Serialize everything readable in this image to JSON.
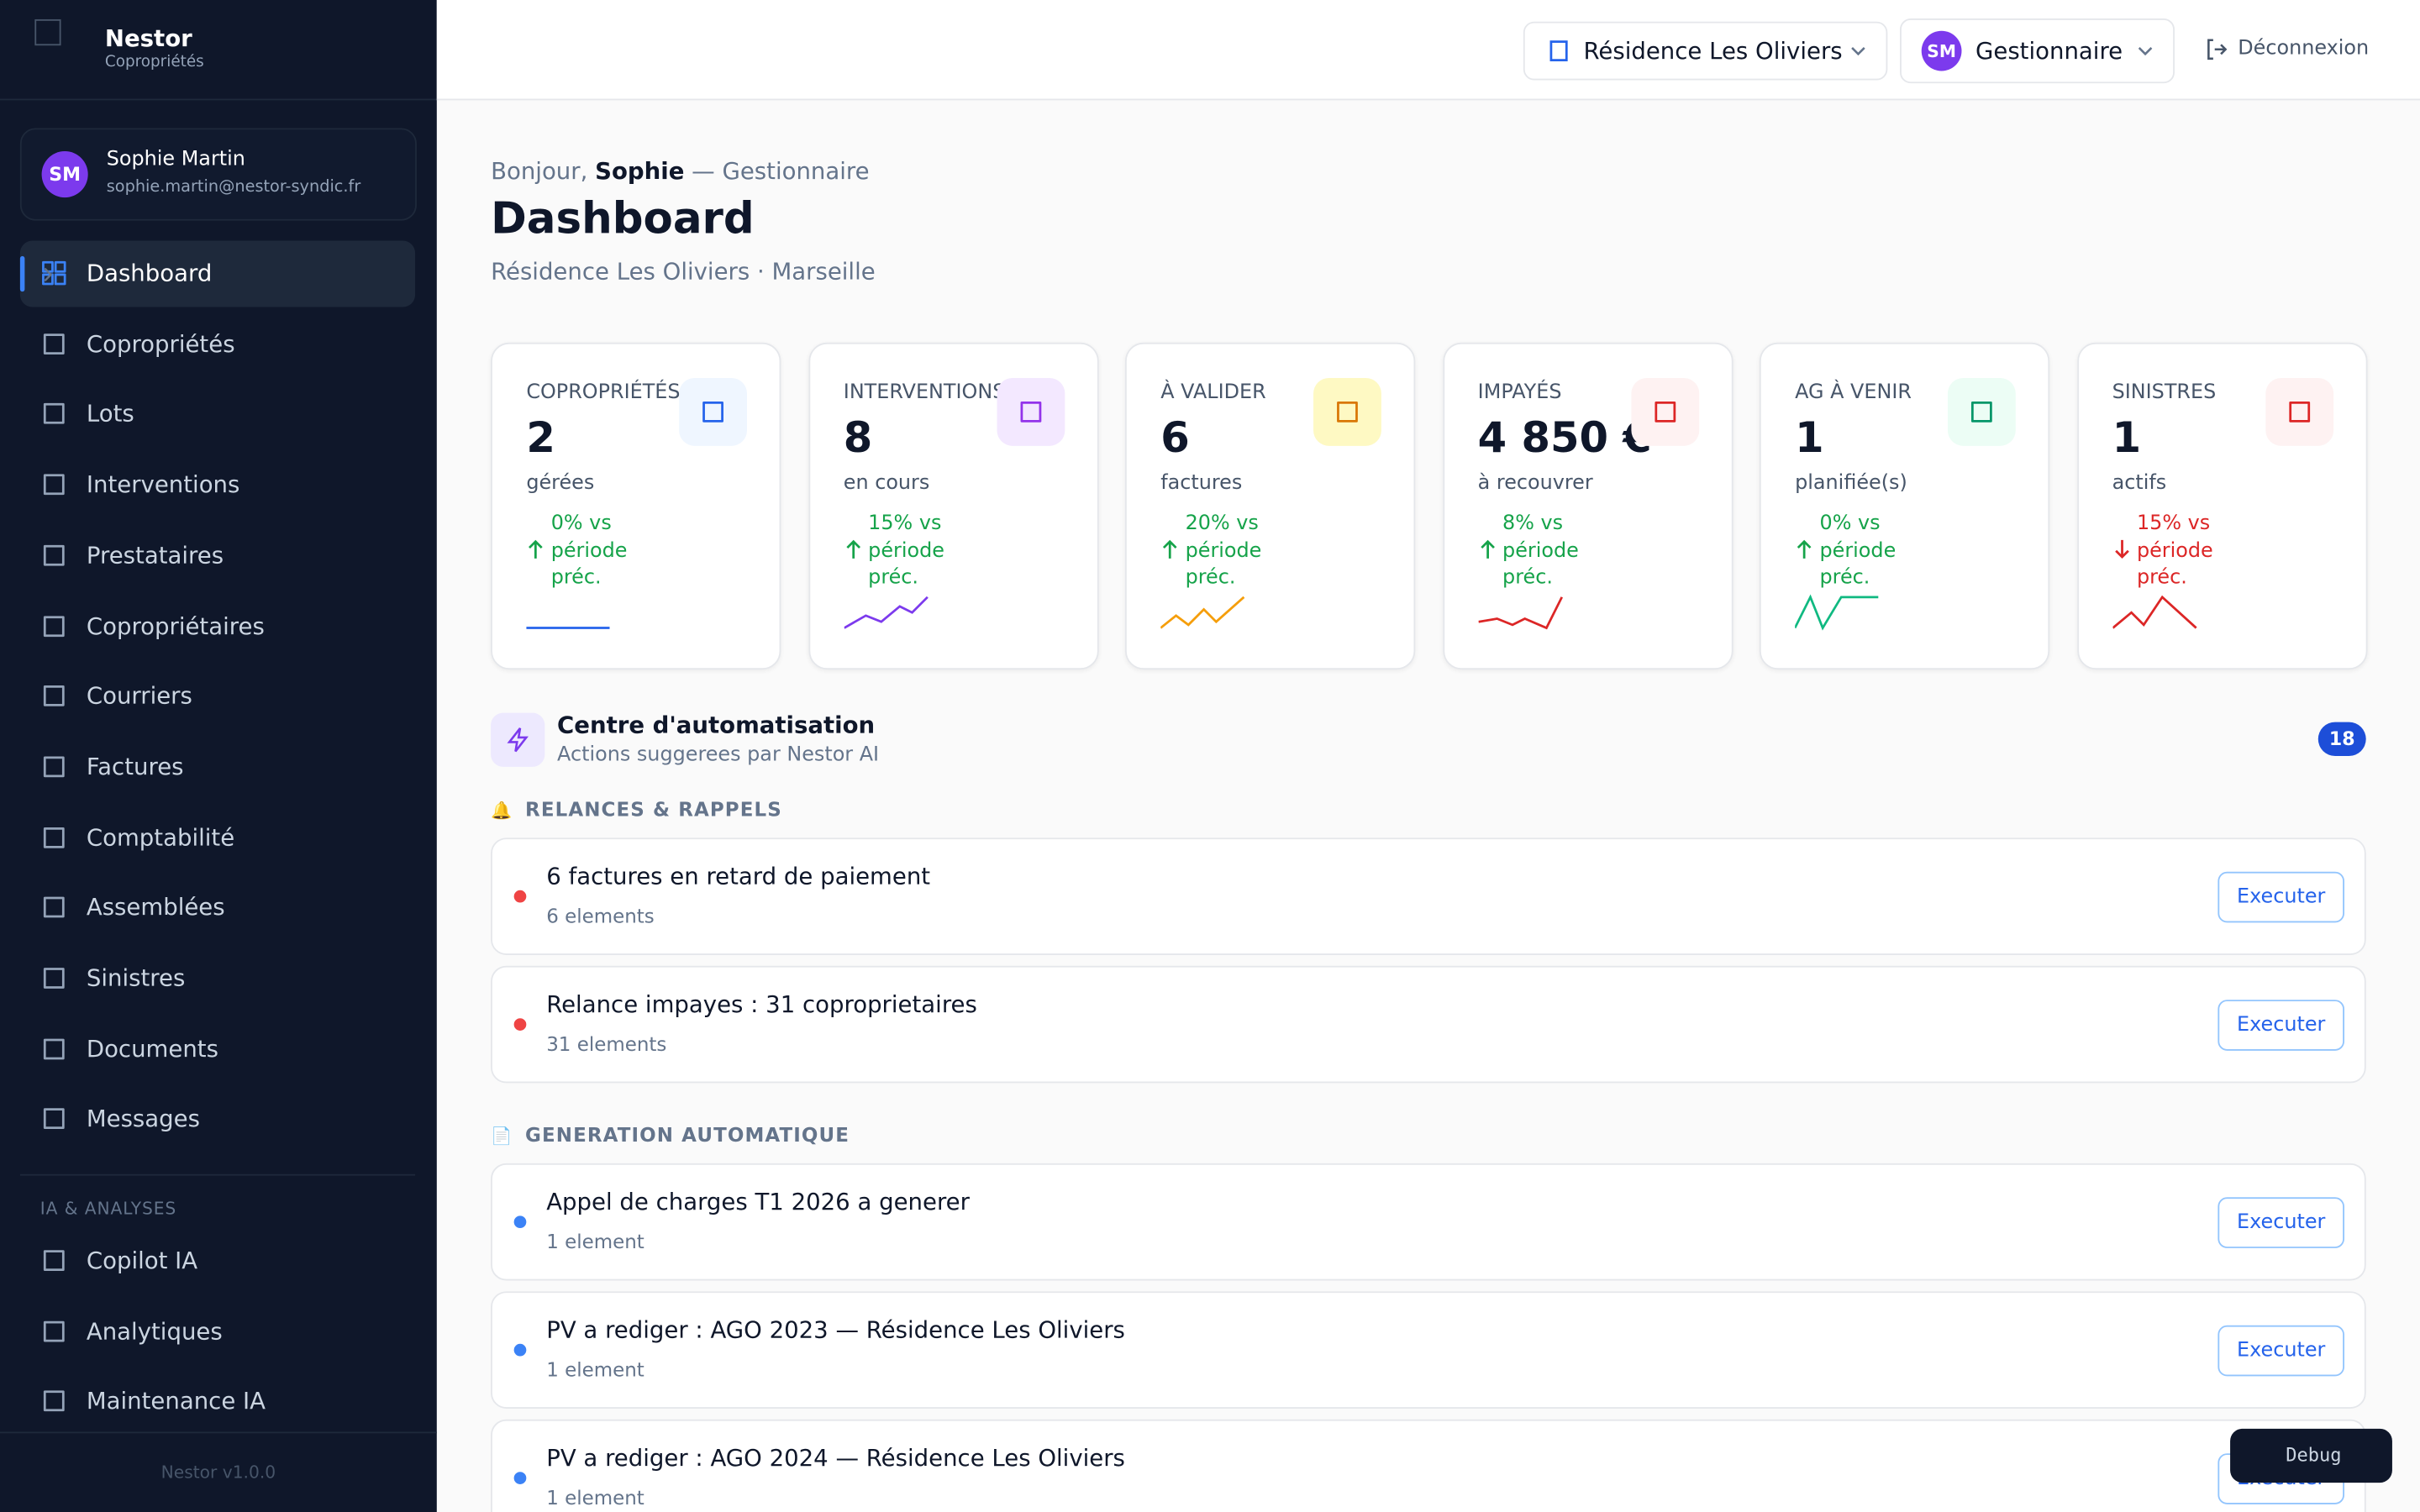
{
  "sidebar": {
    "brand": "Nestor",
    "brand_sub": "Copropriétés",
    "user": {
      "initials": "SM",
      "name": "Sophie Martin",
      "email": "sophie.martin@nestor-syndic.fr"
    },
    "nav": [
      "Dashboard",
      "Copropriétés",
      "Lots",
      "Interventions",
      "Prestataires",
      "Copropriétaires",
      "Courriers",
      "Factures",
      "Comptabilité",
      "Assemblées",
      "Sinistres",
      "Documents",
      "Messages"
    ],
    "section": "IA & ANALYSES",
    "nav_ia": [
      "Copilot IA",
      "Analytiques",
      "Maintenance IA"
    ],
    "version": "Nestor v1.0.0"
  },
  "topbar": {
    "residence": "Résidence Les Oliviers",
    "role_initials": "SM",
    "role": "Gestionnaire",
    "logout": "Déconnexion"
  },
  "header": {
    "greeting": "Bonjour,",
    "name": "Sophie",
    "role": "— Gestionnaire",
    "title": "Dashboard",
    "subtitle": "Résidence Les Oliviers · Marseille"
  },
  "kpis": [
    {
      "label": "COPROPRIÉTÉS",
      "value": "2",
      "unit": "gérées",
      "trend": "0% vs période préc.",
      "direction": "up"
    },
    {
      "label": "INTERVENTIONS",
      "value": "8",
      "unit": "en cours",
      "trend": "15% vs période préc.",
      "direction": "up"
    },
    {
      "label": "À VALIDER",
      "value": "6",
      "unit": "factures",
      "trend": "20% vs période préc.",
      "direction": "up"
    },
    {
      "label": "IMPAYÉS",
      "value": "4 850 €",
      "unit": "à recouvrer",
      "trend": "8% vs période préc.",
      "direction": "up"
    },
    {
      "label": "AG À VENIR",
      "value": "1",
      "unit": "planifiée(s)",
      "trend": "0% vs période préc.",
      "direction": "up"
    },
    {
      "label": "SINISTRES",
      "value": "1",
      "unit": "actifs",
      "trend": "15% vs période préc.",
      "direction": "down"
    }
  ],
  "automation": {
    "title": "Centre d'automatisation",
    "subtitle": "Actions suggerees par Nestor AI",
    "count": 18,
    "groups": [
      {
        "icon": "🔔",
        "title": "RELANCES & RAPPELS",
        "items": [
          {
            "title": "6 factures en retard de paiement",
            "detail": "6 elements",
            "action": "Executer"
          },
          {
            "title": "Relance impayes : 31 coproprietaires",
            "detail": "31 elements",
            "action": "Executer"
          }
        ]
      },
      {
        "icon": "📄",
        "title": "GENERATION AUTOMATIQUE",
        "items": [
          {
            "title": "Appel de charges T1 2026 a generer",
            "detail": "1 element",
            "action": "Executer"
          },
          {
            "title": "PV a rediger : AGO 2023 — Résidence Les Oliviers",
            "detail": "1 element",
            "action": "Executer"
          },
          {
            "title": "PV a rediger : AGO 2024 — Résidence Les Oliviers",
            "detail": "1 element",
            "action": "Executer"
          }
        ]
      }
    ]
  },
  "debug": "Debug"
}
